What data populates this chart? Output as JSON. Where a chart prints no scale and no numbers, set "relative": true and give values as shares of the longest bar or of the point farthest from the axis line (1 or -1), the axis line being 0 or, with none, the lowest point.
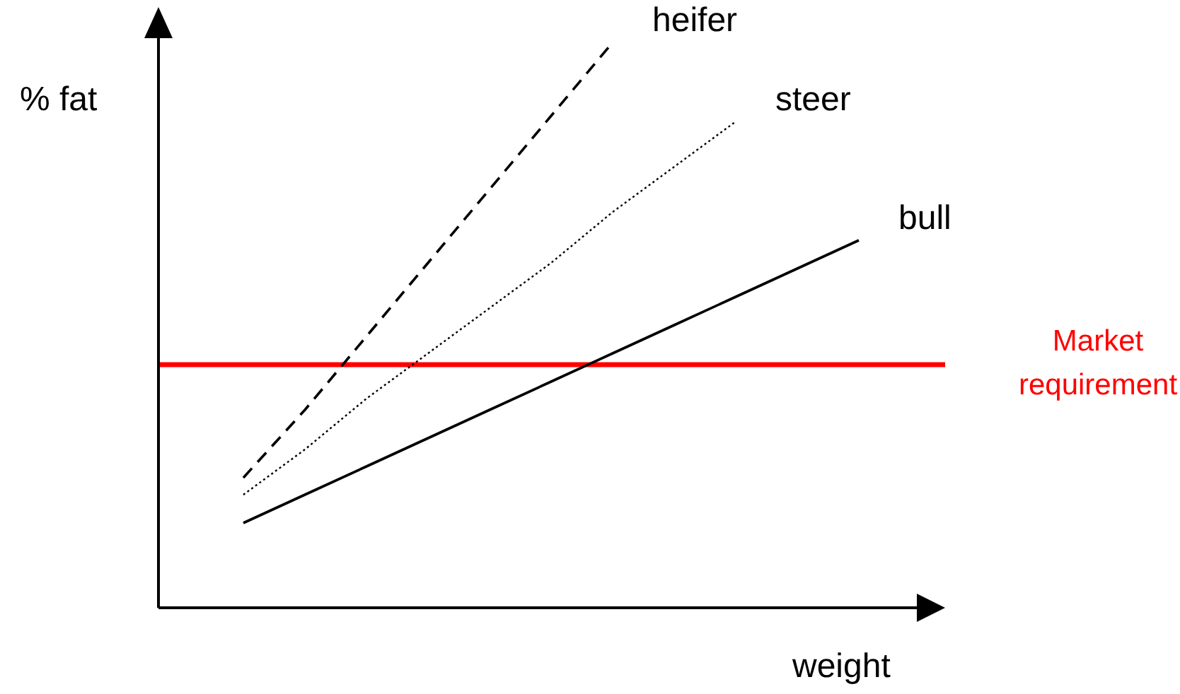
{
  "chart_data": {
    "type": "line",
    "relative": true,
    "ylabel": "% fat",
    "xlabel": "weight",
    "categories": [
      null,
      null,
      null,
      null,
      null,
      null,
      null,
      null,
      null,
      null,
      null
    ],
    "series": [
      {
        "name": "heifer",
        "color": "#000000",
        "line_style": "dashed",
        "values": [
          0.23,
          0.35,
          0.48,
          0.61,
          0.74,
          0.87,
          1,
          null,
          null,
          null,
          null
        ]
      },
      {
        "name": "steer",
        "color": "#000000",
        "line_style": "dotted",
        "values": [
          0.2,
          0.28,
          0.37,
          0.45,
          0.53,
          0.61,
          0.7,
          0.78,
          0.86,
          null,
          null
        ]
      },
      {
        "name": "bull",
        "color": "#000000",
        "line_style": "solid",
        "values": [
          0.15,
          0.2,
          0.25,
          0.3,
          0.35,
          0.4,
          0.45,
          0.5,
          0.55,
          0.6,
          0.65
        ]
      }
    ],
    "ref_lines": [
      {
        "axis": "y",
        "value": 0.43,
        "label": "Market requirement",
        "color": "#ff0000"
      }
    ],
    "legend": false
  }
}
